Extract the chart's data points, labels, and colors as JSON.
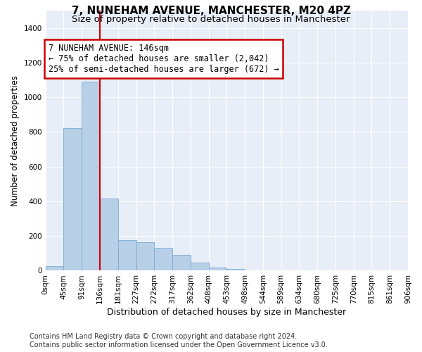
{
  "title": "7, NUNEHAM AVENUE, MANCHESTER, M20 4PZ",
  "subtitle": "Size of property relative to detached houses in Manchester",
  "xlabel": "Distribution of detached houses by size in Manchester",
  "ylabel": "Number of detached properties",
  "bar_color": "#b8cfe8",
  "bar_edge_color": "#7aaad0",
  "categories": [
    "0sqm",
    "45sqm",
    "91sqm",
    "136sqm",
    "181sqm",
    "227sqm",
    "272sqm",
    "317sqm",
    "362sqm",
    "408sqm",
    "453sqm",
    "498sqm",
    "544sqm",
    "589sqm",
    "634sqm",
    "680sqm",
    "725sqm",
    "770sqm",
    "815sqm",
    "861sqm",
    "906sqm"
  ],
  "values": [
    25,
    820,
    1090,
    415,
    175,
    165,
    130,
    90,
    45,
    18,
    8,
    3,
    0,
    0,
    0,
    0,
    0,
    0,
    0,
    0
  ],
  "vline_x": 3,
  "vline_color": "#cc0000",
  "annotation_text": "7 NUNEHAM AVENUE: 146sqm\n← 75% of detached houses are smaller (2,042)\n25% of semi-detached houses are larger (672) →",
  "annotation_box_facecolor": "#ffffff",
  "annotation_box_edge": "#cc0000",
  "ylim": [
    0,
    1500
  ],
  "yticks": [
    0,
    200,
    400,
    600,
    800,
    1000,
    1200,
    1400
  ],
  "background_color": "#ffffff",
  "plot_bg_color": "#e8eef8",
  "grid_color": "#ffffff",
  "footer": "Contains HM Land Registry data © Crown copyright and database right 2024.\nContains public sector information licensed under the Open Government Licence v3.0.",
  "title_fontsize": 11,
  "subtitle_fontsize": 9.5,
  "xlabel_fontsize": 9,
  "ylabel_fontsize": 8.5,
  "tick_fontsize": 7.5,
  "annotation_fontsize": 8.5,
  "footer_fontsize": 7
}
